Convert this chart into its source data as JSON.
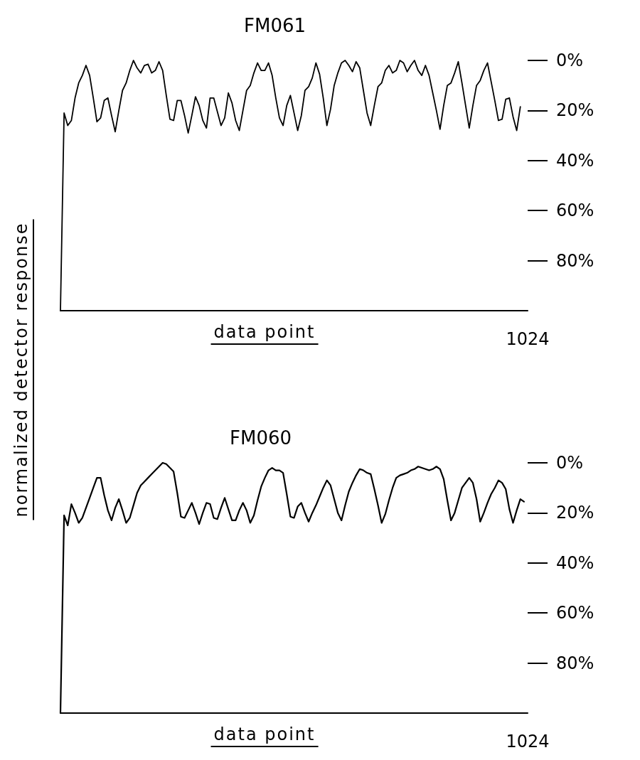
{
  "chart_data": [
    {
      "type": "line",
      "title": "FM061",
      "xlabel": "data point",
      "ylabel": "normalized detector response",
      "categories": [
        null,
        null,
        null,
        null,
        null,
        null,
        null,
        null,
        null,
        null,
        null,
        null,
        null,
        null,
        null,
        null,
        null,
        null,
        null,
        null,
        null,
        null,
        null,
        null,
        null,
        null,
        null,
        null,
        null,
        null,
        null,
        null,
        null,
        null,
        null,
        null,
        null,
        null,
        null,
        null,
        null,
        null,
        null,
        null,
        null,
        null,
        null,
        null,
        null,
        null,
        null,
        null,
        null,
        null,
        null,
        null,
        null,
        null,
        null,
        null,
        null,
        null,
        null,
        null,
        null,
        null,
        null,
        null,
        null,
        null,
        null,
        null,
        null,
        null,
        null,
        null,
        null,
        null,
        null,
        null,
        null,
        null,
        null,
        null,
        null,
        null,
        null,
        null,
        null,
        null,
        null,
        null,
        null,
        null,
        null,
        null,
        null,
        null,
        null,
        null,
        null,
        null,
        null,
        null,
        null,
        null,
        null,
        null,
        null,
        null,
        null,
        null,
        null,
        null,
        null,
        null,
        null,
        null,
        null,
        null,
        null,
        null,
        null,
        null,
        null,
        null,
        null,
        null,
        "1024"
      ],
      "ylim": [
        100,
        0
      ],
      "yticks": [
        {
          "value": 0,
          "label": "0%"
        },
        {
          "value": 20,
          "label": "20%"
        },
        {
          "value": 40,
          "label": "40%"
        },
        {
          "value": 60,
          "label": "60%"
        },
        {
          "value": 80,
          "label": "80%"
        }
      ],
      "line_style": "solid",
      "series": [
        {
          "color": "#000000",
          "values": [
            100,
            21,
            26,
            24,
            15,
            9,
            6,
            2,
            6,
            15,
            24.5,
            23,
            16,
            15,
            22,
            28.5,
            20,
            12,
            9,
            4,
            0,
            3,
            5,
            2,
            1.5,
            5,
            4,
            0.5,
            4,
            14,
            23.5,
            24,
            16,
            16,
            22,
            29,
            22,
            14.5,
            18,
            24,
            27,
            15,
            15,
            20.5,
            26,
            23,
            13,
            17,
            24,
            28,
            20,
            12,
            10,
            5,
            1,
            4,
            4,
            1,
            6,
            15,
            23,
            26,
            18,
            14,
            21,
            28,
            22,
            12,
            10.5,
            7,
            1,
            5.5,
            15,
            26,
            19.5,
            10,
            5,
            1,
            0,
            2,
            4.5,
            0.5,
            3,
            12,
            21,
            26,
            18,
            10.5,
            9,
            4,
            2,
            5,
            4,
            0,
            1,
            4.5,
            2,
            0,
            4,
            6,
            2,
            6,
            13,
            20,
            27.5,
            18,
            10,
            9,
            5,
            0.5,
            9,
            18,
            27,
            18,
            10,
            8,
            4,
            1,
            8.5,
            16,
            24,
            23.5,
            15.5,
            15,
            22.5,
            28,
            18.5,
            null,
            null
          ]
        }
      ]
    },
    {
      "type": "line",
      "title": "FM060",
      "xlabel": "data point",
      "categories": [
        null,
        null,
        null,
        null,
        null,
        null,
        null,
        null,
        null,
        null,
        null,
        null,
        null,
        null,
        null,
        null,
        null,
        null,
        null,
        null,
        null,
        null,
        null,
        null,
        null,
        null,
        null,
        null,
        null,
        null,
        null,
        null,
        null,
        null,
        null,
        null,
        null,
        null,
        null,
        null,
        null,
        null,
        null,
        null,
        null,
        null,
        null,
        null,
        null,
        null,
        null,
        null,
        null,
        null,
        null,
        null,
        null,
        null,
        null,
        null,
        null,
        null,
        null,
        null,
        null,
        null,
        null,
        null,
        null,
        null,
        null,
        null,
        null,
        null,
        null,
        null,
        null,
        null,
        null,
        null,
        null,
        null,
        null,
        null,
        null,
        null,
        null,
        null,
        null,
        null,
        null,
        null,
        null,
        null,
        null,
        null,
        null,
        null,
        null,
        null,
        null,
        null,
        null,
        null,
        null,
        null,
        null,
        null,
        null,
        null,
        null,
        null,
        null,
        null,
        null,
        null,
        null,
        null,
        null,
        null,
        null,
        null,
        null,
        null,
        null,
        null,
        null,
        null,
        "1024"
      ],
      "ylim": [
        100,
        0
      ],
      "yticks": [
        {
          "value": 0,
          "label": "0%"
        },
        {
          "value": 20,
          "label": "20%"
        },
        {
          "value": 40,
          "label": "40%"
        },
        {
          "value": 60,
          "label": "60%"
        },
        {
          "value": 80,
          "label": "80%"
        }
      ],
      "line_style": "solid",
      "series": [
        {
          "color": "#000000",
          "values": [
            100,
            21,
            25,
            16.5,
            20,
            24,
            22,
            18,
            14,
            10,
            6,
            6,
            13,
            19,
            23,
            18,
            14.5,
            19,
            24,
            22,
            17,
            12,
            9,
            7.5,
            6,
            4.5,
            3,
            1.5,
            0,
            0.5,
            2,
            3.5,
            12,
            21.5,
            22,
            19,
            16,
            20,
            24.5,
            20,
            16,
            16.5,
            22,
            22.5,
            18,
            14,
            18.5,
            23,
            23,
            19,
            16,
            19,
            24,
            21,
            15,
            9.5,
            6,
            3,
            2,
            3,
            3,
            4,
            12.5,
            21.5,
            22,
            17.5,
            16,
            20,
            23.5,
            20,
            17,
            13.5,
            10,
            7,
            9,
            14.5,
            20,
            23,
            17,
            11.5,
            8,
            5,
            2.5,
            3,
            4,
            4.5,
            10.5,
            17,
            24,
            20.5,
            15,
            10,
            6,
            5,
            4.5,
            4,
            3,
            2.5,
            1.5,
            2,
            2.5,
            3,
            2.5,
            1.5,
            2.5,
            6.5,
            15,
            23,
            20,
            15,
            10,
            8,
            6,
            8,
            14.5,
            23.5,
            20,
            16,
            12.5,
            10,
            7,
            8,
            10.5,
            18.5,
            24,
            19,
            14.5,
            15.5,
            null
          ]
        }
      ]
    }
  ]
}
